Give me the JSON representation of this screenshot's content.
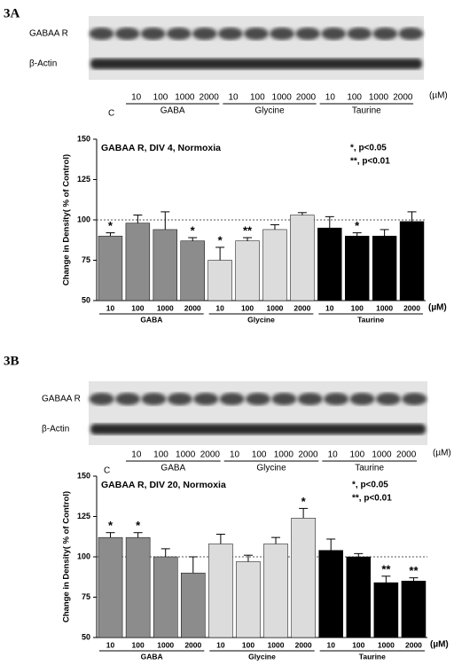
{
  "figures": [
    {
      "label": "3A",
      "blot_rows": [
        "GABAA R",
        "β-Actin"
      ],
      "control": "C",
      "lanes": [
        "10",
        "100",
        "1000",
        "2000",
        "10",
        "100",
        "1000",
        "2000",
        "10",
        "100",
        "1000",
        "2000"
      ],
      "groups": [
        "GABA",
        "Glycine",
        "Taurine"
      ],
      "unit": "(µM)"
    },
    {
      "label": "3B",
      "blot_rows": [
        "GABAA R",
        "β-Actin"
      ],
      "control": "C",
      "lanes": [
        "10",
        "100",
        "1000",
        "2000",
        "10",
        "100",
        "1000",
        "2000",
        "10",
        "100",
        "1000",
        "2000"
      ],
      "groups": [
        "GABA",
        "Glycine",
        "Taurine"
      ],
      "unit": "(µM)"
    }
  ],
  "chart_data": [
    {
      "type": "bar",
      "title": "GABAA R, DIV 4, Normoxia",
      "y_label": "Change in Density( % of Control)",
      "x_unit": "(µM)",
      "annotations": [
        "*, p<0.05",
        "**, p<0.01"
      ],
      "categories": [
        "10",
        "100",
        "1000",
        "2000"
      ],
      "series": [
        {
          "name": "GABA",
          "color": "#8c8c8c",
          "values": [
            90,
            98,
            94,
            87
          ],
          "errors": [
            2,
            5,
            11,
            2
          ],
          "significance": [
            "*",
            null,
            null,
            "*"
          ]
        },
        {
          "name": "Glycine",
          "color": "#dcdcdc",
          "values": [
            75,
            87,
            94,
            103
          ],
          "errors": [
            8,
            2,
            3,
            1.5
          ],
          "significance": [
            "*",
            "**",
            null,
            null
          ]
        },
        {
          "name": "Taurine",
          "color": "#000000",
          "values": [
            95,
            90,
            90,
            99
          ],
          "errors": [
            7,
            2,
            4,
            6
          ],
          "significance": [
            null,
            "*",
            null,
            null
          ]
        }
      ],
      "ylim": [
        50,
        150
      ],
      "yticks": [
        50,
        75,
        100,
        125,
        150
      ],
      "reference_line": 100
    },
    {
      "type": "bar",
      "title": "GABAA R, DIV 20, Normoxia",
      "y_label": "Change in Density( % of Control)",
      "x_unit": "(µM)",
      "annotations": [
        "*, p<0.05",
        "**, p<0.01"
      ],
      "categories": [
        "10",
        "100",
        "1000",
        "2000"
      ],
      "series": [
        {
          "name": "GABA",
          "color": "#8c8c8c",
          "values": [
            112,
            112,
            100,
            90
          ],
          "errors": [
            3,
            3,
            5,
            10
          ],
          "significance": [
            "*",
            "*",
            null,
            null
          ]
        },
        {
          "name": "Glycine",
          "color": "#dcdcdc",
          "values": [
            108,
            97,
            108,
            124
          ],
          "errors": [
            6,
            4,
            4,
            6
          ],
          "significance": [
            null,
            null,
            null,
            "*"
          ]
        },
        {
          "name": "Taurine",
          "color": "#000000",
          "values": [
            104,
            100,
            84,
            85
          ],
          "errors": [
            7,
            2,
            4,
            2
          ],
          "significance": [
            null,
            null,
            "**",
            "**"
          ]
        }
      ],
      "ylim": [
        50,
        150
      ],
      "yticks": [
        50,
        75,
        100,
        125,
        150
      ],
      "reference_line": 100
    }
  ]
}
